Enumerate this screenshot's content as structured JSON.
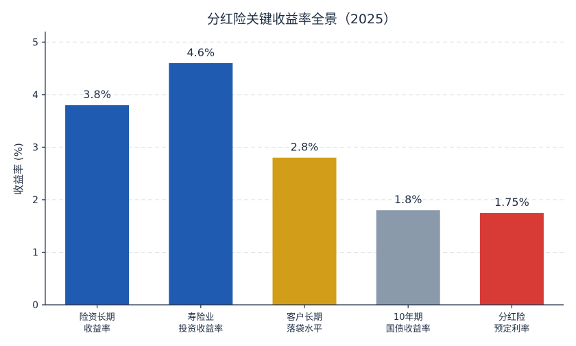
{
  "chart_data": {
    "type": "bar",
    "title": "分红险关键收益率全景（2025）",
    "ylabel": "收益率 (%)",
    "xlabel": "",
    "ylim": [
      0,
      5.2
    ],
    "yticks": [
      0,
      1,
      2,
      3,
      4,
      5
    ],
    "grid": "horizontal dashed",
    "categories": [
      [
        "险资长期",
        "收益率"
      ],
      [
        "寿险业",
        "投资收益率"
      ],
      [
        "客户长期",
        "落袋水平"
      ],
      [
        "10年期",
        "国债收益率"
      ],
      [
        "分红险",
        "预定利率"
      ]
    ],
    "values": [
      3.8,
      4.6,
      2.8,
      1.8,
      1.75
    ],
    "value_labels": [
      "3.8%",
      "4.6%",
      "2.8%",
      "1.8%",
      "1.75%"
    ],
    "colors": [
      "#1f5bb0",
      "#1f5bb0",
      "#d29e1a",
      "#8a9aaa",
      "#d83a36"
    ]
  }
}
